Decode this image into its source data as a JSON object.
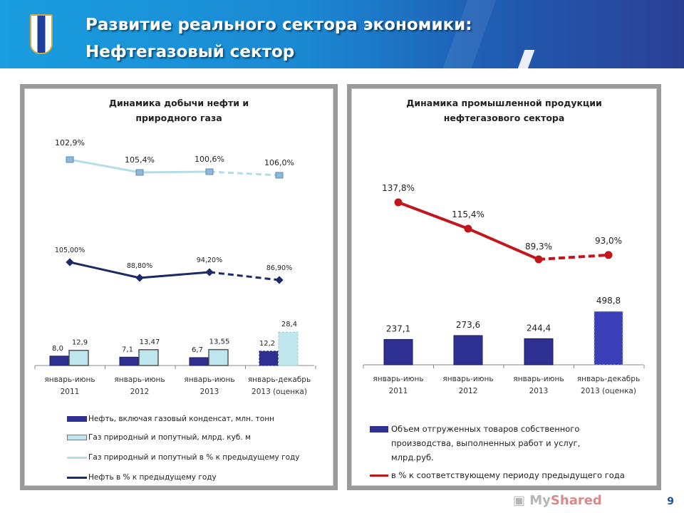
{
  "header": {
    "title_line1": "Развитие реального сектора экономики:",
    "title_line2": "Нефтегазовый сектор"
  },
  "page_number": "9",
  "watermark": "MyShared",
  "colors": {
    "oil": "#2e3192",
    "gas": "#bfe6ec",
    "gas_line": "#b5dde6",
    "red": "#c0161c",
    "header": "#1a8fd8"
  },
  "chart_data": [
    {
      "type": "bar+line",
      "title": "Динамика добычи нефти и природного газа",
      "categories": [
        "январь-июнь 2011",
        "январь-июнь 2012",
        "январь-июнь 2013",
        "январь-декабрь 2013 (оценка)"
      ],
      "series": [
        {
          "name": "Нефть, включая газовый конденсат, млн. тонн",
          "kind": "bar",
          "values": [
            8.0,
            7.1,
            6.7,
            12.2
          ],
          "labels": [
            "8,0",
            "7,1",
            "6,7",
            "12,2"
          ]
        },
        {
          "name": "Газ природный и попутный, млрд. куб. м",
          "kind": "bar",
          "values": [
            12.9,
            13.47,
            13.55,
            28.4
          ],
          "labels": [
            "12,9",
            "13,47",
            "13,55",
            "28,4"
          ]
        },
        {
          "name": "Газ природный и попутный в % к предыдущему году",
          "kind": "line",
          "values": [
            102.9,
            105.4,
            100.6,
            106.0
          ],
          "labels": [
            "102,9%",
            "105,4%",
            "100,6%",
            "106,0%"
          ]
        },
        {
          "name": "Нефть в % к предыдущему году",
          "kind": "line",
          "values": [
            105.0,
            88.8,
            94.2,
            86.9
          ],
          "labels": [
            "105,00%",
            "88,80%",
            "94,20%",
            "86,90%"
          ]
        }
      ],
      "legend": "bottom",
      "grid": false
    },
    {
      "type": "bar+line",
      "title": "Динамика промышленной продукции нефтегазового сектора",
      "categories": [
        "январь-июнь 2011",
        "январь-июнь 2012",
        "январь-июнь 2013",
        "январь-декабрь 2013 (оценка)"
      ],
      "series": [
        {
          "name": "Объем отгруженных товаров собственного производства, выполненных работ и услуг, млрд.руб.",
          "kind": "bar",
          "values": [
            237.1,
            273.6,
            244.4,
            498.8
          ],
          "labels": [
            "237,1",
            "273,6",
            "244,4",
            "498,8"
          ]
        },
        {
          "name": "в % к соответствующему периоду предыдущего года",
          "kind": "line",
          "values": [
            137.8,
            115.4,
            89.3,
            93.0
          ],
          "labels": [
            "137,8%",
            "115,4%",
            "89,3%",
            "93,0%"
          ]
        }
      ],
      "legend": "bottom",
      "grid": false
    }
  ]
}
